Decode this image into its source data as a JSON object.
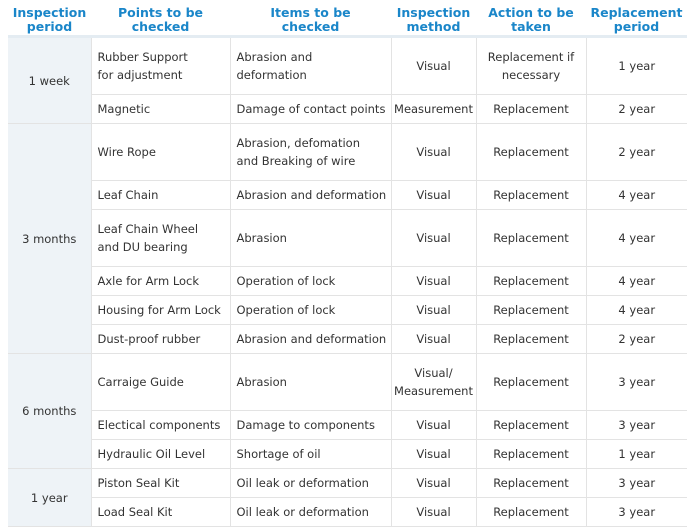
{
  "headers": {
    "period": "Inspection\nperiod",
    "points": "Points to be\nchecked",
    "items": "Items to be\nchecked",
    "method": "Inspection\nmethod",
    "action": "Action to be\ntaken",
    "replacement": "Replacement\nperiod"
  },
  "groups": [
    {
      "period": "1 week",
      "rows": [
        {
          "point": "Rubber Support\nfor adjustment",
          "item": "Abrasion and\ndeformation",
          "method": "Visual",
          "action": "Replacement if\nnecessary",
          "replace": "1 year"
        },
        {
          "point": "Magnetic",
          "item": "Damage of contact points",
          "method": "Measurement",
          "action": "Replacement",
          "replace": "2 year"
        }
      ]
    },
    {
      "period": "3 months",
      "rows": [
        {
          "point": "Wire Rope",
          "item": "Abrasion, defomation\nand Breaking of wire",
          "method": "Visual",
          "action": "Replacement",
          "replace": "2 year"
        },
        {
          "point": "Leaf Chain",
          "item": "Abrasion and deformation",
          "method": "Visual",
          "action": "Replacement",
          "replace": "4 year"
        },
        {
          "point": "Leaf Chain Wheel\nand DU bearing",
          "item": "Abrasion",
          "method": "Visual",
          "action": "Replacement",
          "replace": "4 year"
        },
        {
          "point": "Axle for Arm Lock",
          "item": "Operation of lock",
          "method": "Visual",
          "action": "Replacement",
          "replace": "4 year"
        },
        {
          "point": "Housing for Arm Lock",
          "item": "Operation of lock",
          "method": "Visual",
          "action": "Replacement",
          "replace": "4 year"
        },
        {
          "point": "Dust-proof rubber",
          "item": "Abrasion and deformation",
          "method": "Visual",
          "action": "Replacement",
          "replace": "2 year"
        }
      ]
    },
    {
      "period": "6 months",
      "rows": [
        {
          "point": "Carraige Guide",
          "item": "Abrasion",
          "method": "Visual/\nMeasurement",
          "action": "Replacement",
          "replace": "3 year"
        },
        {
          "point": "Electical components",
          "item": "Damage to components",
          "method": "Visual",
          "action": "Replacement",
          "replace": "3 year"
        },
        {
          "point": "Hydraulic Oil Level",
          "item": "Shortage of oil",
          "method": "Visual",
          "action": "Replacement",
          "replace": "1 year"
        }
      ]
    },
    {
      "period": "1 year",
      "rows": [
        {
          "point": "Piston Seal Kit",
          "item": "Oil leak or deformation",
          "method": "Visual",
          "action": "Replacement",
          "replace": "3 year"
        },
        {
          "point": "Load Seal Kit",
          "item": "Oil leak or deformation",
          "method": "Visual",
          "action": "Replacement",
          "replace": "3 year"
        }
      ]
    }
  ]
}
